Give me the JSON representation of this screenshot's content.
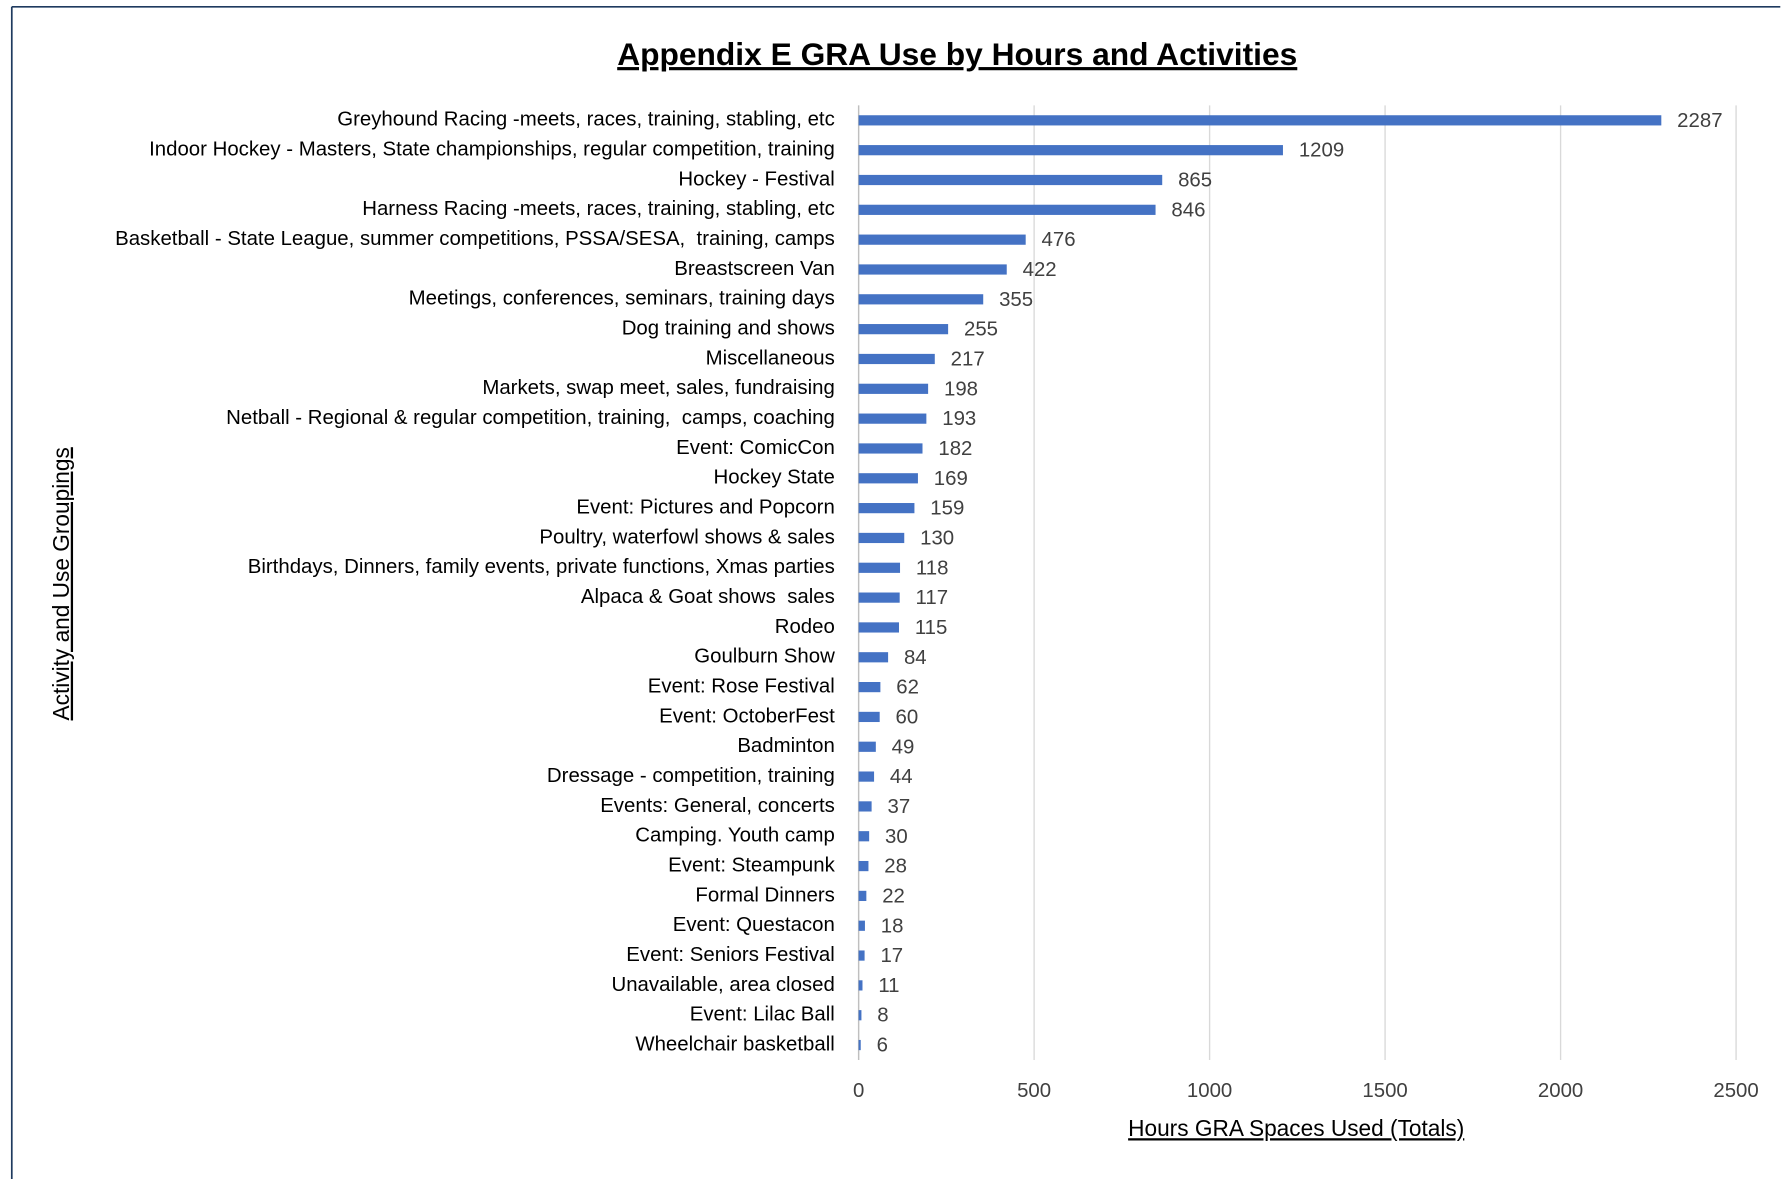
{
  "chart_data": {
    "type": "bar",
    "orientation": "horizontal",
    "title": "Appendix E GRA Use by Hours and Activities",
    "x_label": "Hours GRA Spaces Used (Totals)",
    "y_label": "Activity and Use Groupings",
    "categories": [
      "Greyhound Racing -meets, races, training, stabling, etc",
      "Indoor Hockey - Masters, State championships, regular competition, training",
      "Hockey - Festival",
      "Harness Racing -meets, races, training, stabling, etc",
      "Basketball - State League, summer competitions, PSSA/SESA,  training, camps",
      "Breastscreen Van",
      "Meetings, conferences, seminars, training days",
      "Dog training and shows",
      "Miscellaneous",
      "Markets, swap meet, sales, fundraising",
      "Netball - Regional & regular competition, training,  camps, coaching",
      "Event: ComicCon",
      "Hockey State",
      "Event: Pictures and Popcorn",
      "Poultry, waterfowl shows & sales",
      "Birthdays, Dinners, family events, private functions, Xmas parties",
      "Alpaca & Goat shows  sales",
      "Rodeo",
      "Goulburn Show",
      "Event: Rose Festival",
      "Event: OctoberFest",
      "Badminton",
      "Dressage - competition, training",
      "Events: General, concerts",
      "Camping. Youth camp",
      "Event: Steampunk",
      "Formal Dinners",
      "Event: Questacon",
      "Event: Seniors Festival",
      "Unavailable, area closed",
      "Event: Lilac Ball",
      "Wheelchair basketball"
    ],
    "values": [
      2287,
      1209,
      865,
      846,
      476,
      422,
      355,
      255,
      217,
      198,
      193,
      182,
      169,
      159,
      130,
      118,
      117,
      115,
      84,
      62,
      60,
      49,
      44,
      37,
      30,
      28,
      22,
      18,
      17,
      11,
      8,
      6
    ],
    "color": "#4472c4",
    "xlim": [
      0,
      2500
    ],
    "xticks": [
      0,
      500,
      1000,
      1500,
      2000,
      2500
    ],
    "grid": true
  }
}
